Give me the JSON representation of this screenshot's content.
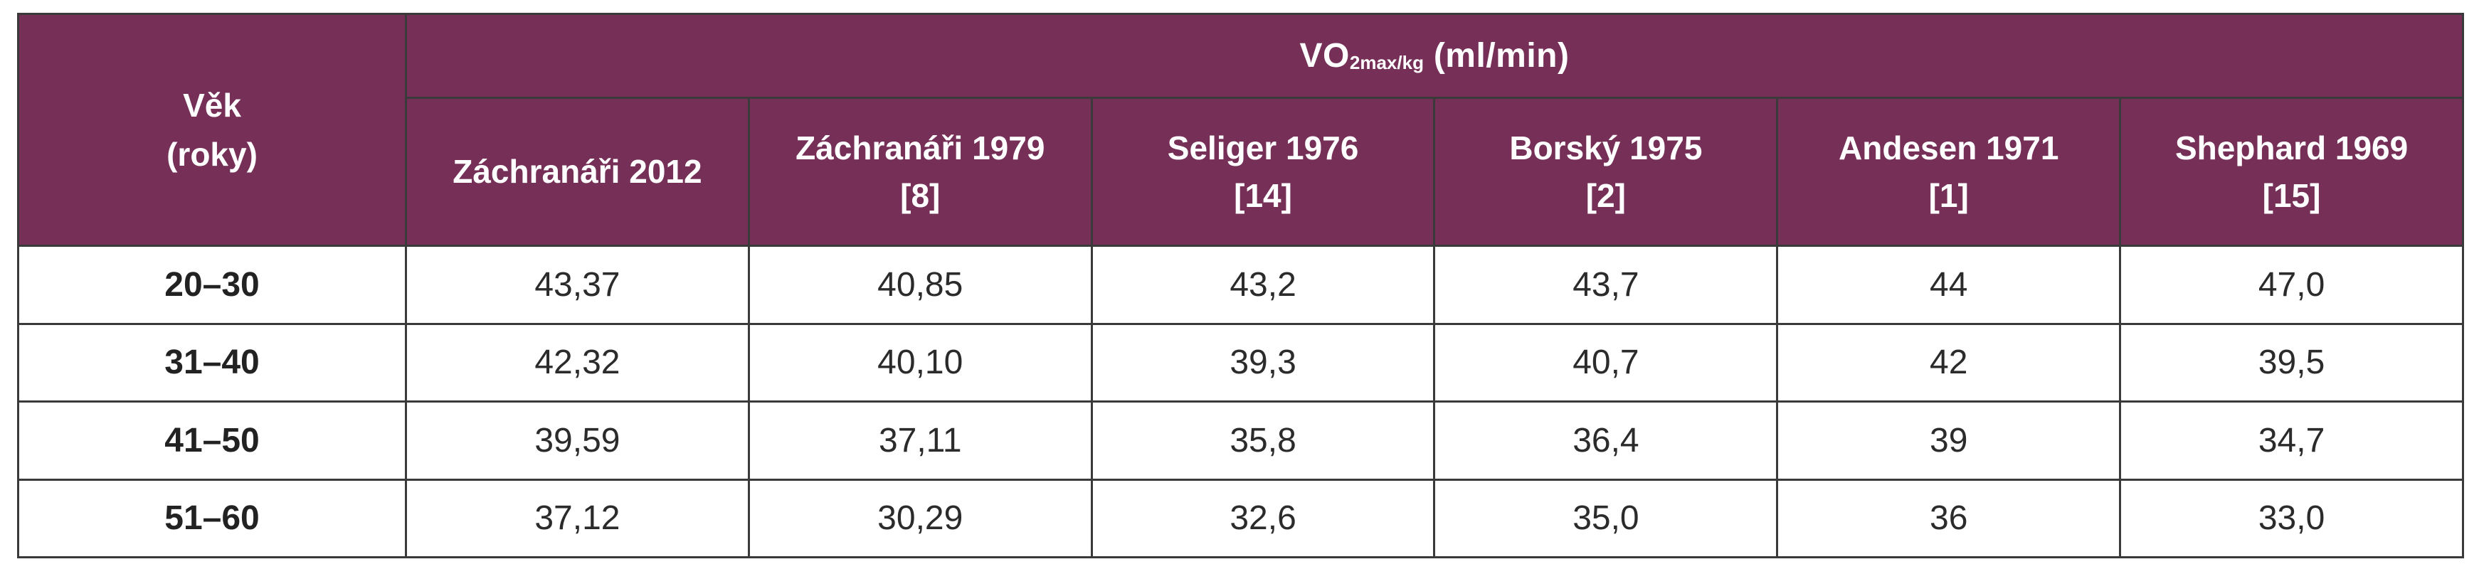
{
  "table": {
    "age_header_line1": "Věk",
    "age_header_line2": "(roky)",
    "group_header": {
      "prefix": "VO",
      "subscript": "2max/kg",
      "unit": "(ml/min)"
    },
    "columns": [
      {
        "line1": "Záchranáři 2012",
        "line2": ""
      },
      {
        "line1": "Záchranáři 1979",
        "line2": "[8]"
      },
      {
        "line1": "Seliger 1976",
        "line2": "[14]"
      },
      {
        "line1": "Borský 1975",
        "line2": "[2]"
      },
      {
        "line1": "Andesen 1971",
        "line2": "[1]"
      },
      {
        "line1": "Shephard 1969",
        "line2": "[15]"
      }
    ],
    "rows": [
      {
        "age": "20–30",
        "values": [
          "43,37",
          "40,85",
          "43,2",
          "43,7",
          "44",
          "47,0"
        ]
      },
      {
        "age": "31–40",
        "values": [
          "42,32",
          "40,10",
          "39,3",
          "40,7",
          "42",
          "39,5"
        ]
      },
      {
        "age": "41–50",
        "values": [
          "39,59",
          "37,11",
          "35,8",
          "36,4",
          "39",
          "34,7"
        ]
      },
      {
        "age": "51–60",
        "values": [
          "37,12",
          "30,29",
          "32,6",
          "35,0",
          "36",
          "33,0"
        ]
      }
    ]
  },
  "colors": {
    "header_bg": "#763058",
    "header_text": "#ffffff",
    "border": "#3a3a3a",
    "body_text": "#2b2b2b"
  }
}
